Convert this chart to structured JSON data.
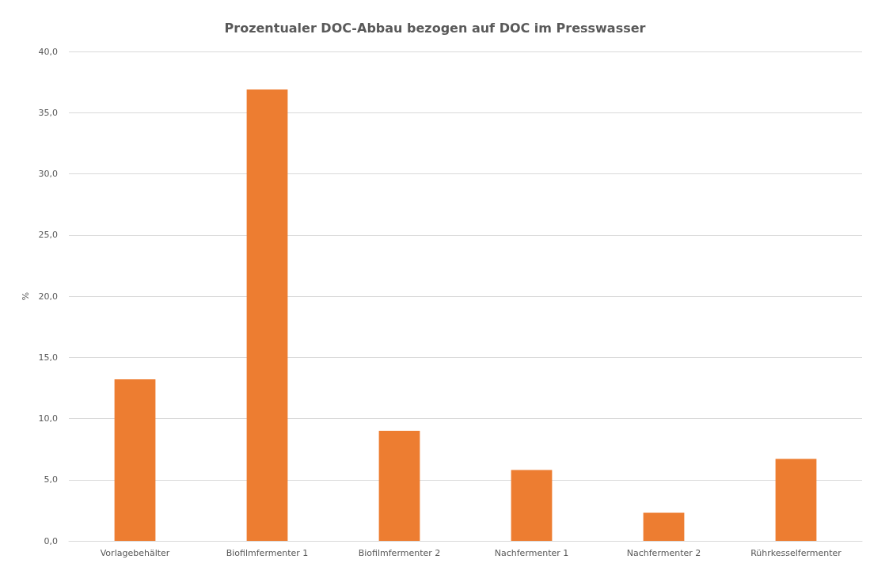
{
  "chart_data": {
    "type": "bar",
    "title": "Prozentualer DOC-Abbau bezogen auf DOC im Presswasser",
    "ylabel": "%",
    "categories": [
      "Vorlagebehälter",
      "Biofilmfermenter 1",
      "Biofilmfermenter 2",
      "Nachfermenter 1",
      "Nachfermenter 2",
      "Rührkesselfermenter"
    ],
    "values": [
      13.2,
      36.9,
      9.0,
      5.8,
      2.3,
      6.7
    ],
    "color": "#ed7d31",
    "ylim": [
      0,
      40
    ],
    "yticks": [
      {
        "value": 0,
        "label": "0,0"
      },
      {
        "value": 5,
        "label": "5,0"
      },
      {
        "value": 10,
        "label": "10,0"
      },
      {
        "value": 15,
        "label": "15,0"
      },
      {
        "value": 20,
        "label": "20,0"
      },
      {
        "value": 25,
        "label": "25,0"
      },
      {
        "value": 30,
        "label": "30,0"
      },
      {
        "value": 35,
        "label": "35,0"
      },
      {
        "value": 40,
        "label": "40,0"
      }
    ],
    "grid": "y"
  }
}
